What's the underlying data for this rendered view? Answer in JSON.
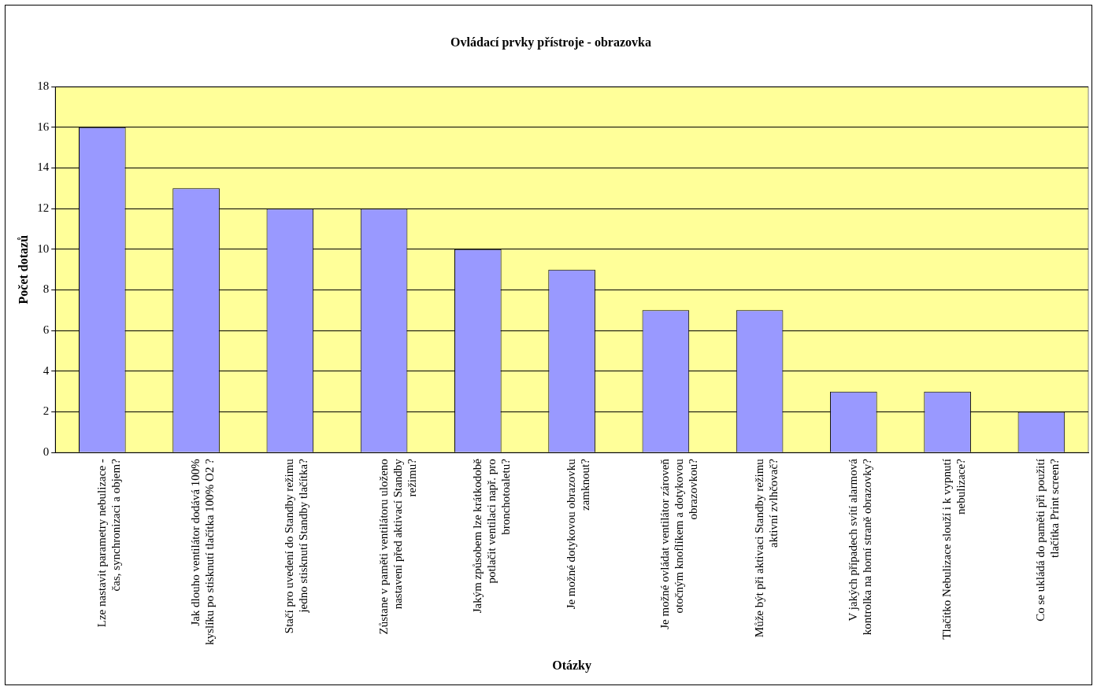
{
  "chart_data": {
    "type": "bar",
    "title": "Ovládací prvky přístroje - obrazovka",
    "xlabel": "Otázky",
    "ylabel": "Počet dotazů",
    "categories": [
      "Lze nastavit parametry nebulizace - čas, synchronizaci a objem?",
      "Jak dlouho ventilátor dodává 100% kyslíku po stisknutí tlačítka 100% O2 ?",
      "Stačí pro uvedení do Standby režimu jedno stisknutí Standby tlačítka?",
      "Zůstane v paměti ventilátoru uloženo nastavení před aktivací Standby režimu?",
      "Jakým způsobem lze krátkodobě potlačit ventilaci např. pro bronchotoaletu?",
      "Je možné dotykovou obrazovku zamknout?",
      "Je možné ovládat ventilátor zároveň otočným knoflíkem a dotykovou obrazovkou?",
      "Může být při aktivaci Standby režimu aktivní zvlhčovač?",
      "V jakých případech svítí alarmová kontrolka na horní straně obrazovky?",
      "Tlačítko Nebulizace slouží i k vypnutí nebulizace?",
      "Co se ukládá do paměti při použití tlačítka Print screen?"
    ],
    "values": [
      16,
      13,
      12,
      12,
      10,
      9,
      7,
      7,
      3,
      3,
      2
    ],
    "color": "#9999ff",
    "ylim": [
      0,
      18
    ],
    "yticks": [
      0,
      2,
      4,
      6,
      8,
      10,
      12,
      14,
      16,
      18
    ],
    "grid": "y",
    "legend": false
  }
}
